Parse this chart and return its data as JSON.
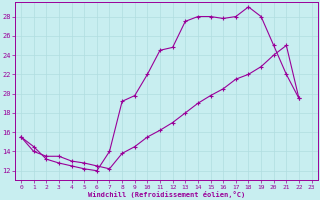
{
  "xlabel": "Windchill (Refroidissement éolien,°C)",
  "bg_color": "#c8eef0",
  "grid_color": "#b0dde0",
  "line_color": "#990099",
  "xlim": [
    -0.5,
    23.5
  ],
  "ylim": [
    11.0,
    29.5
  ],
  "yticks": [
    12,
    14,
    16,
    18,
    20,
    22,
    24,
    26,
    28
  ],
  "xticks": [
    0,
    1,
    2,
    3,
    4,
    5,
    6,
    7,
    8,
    9,
    10,
    11,
    12,
    13,
    14,
    15,
    16,
    17,
    18,
    19,
    20,
    21,
    22,
    23
  ],
  "line1_x": [
    0,
    1,
    2,
    3,
    4,
    5,
    6,
    7,
    8,
    9,
    10,
    11,
    12,
    13,
    14,
    15,
    16,
    17,
    18,
    19,
    20,
    21,
    22
  ],
  "line1_y": [
    15.5,
    14.5,
    13.2,
    12.8,
    12.5,
    12.2,
    12.0,
    14.0,
    19.2,
    19.8,
    22.0,
    24.5,
    24.8,
    27.5,
    28.0,
    28.0,
    27.8,
    28.0,
    29.0,
    28.0,
    25.0,
    22.0,
    19.5
  ],
  "line2_x": [
    0,
    1,
    2,
    3,
    4,
    5,
    6,
    7,
    8,
    9,
    10,
    11,
    12,
    13,
    14,
    15,
    16,
    17,
    18,
    19,
    20,
    21,
    22
  ],
  "line2_y": [
    15.5,
    14.0,
    13.5,
    13.5,
    13.0,
    12.8,
    12.5,
    12.2,
    13.8,
    14.5,
    15.5,
    16.2,
    17.0,
    18.0,
    19.0,
    19.8,
    20.5,
    21.5,
    22.0,
    22.8,
    24.0,
    25.0,
    19.5
  ]
}
